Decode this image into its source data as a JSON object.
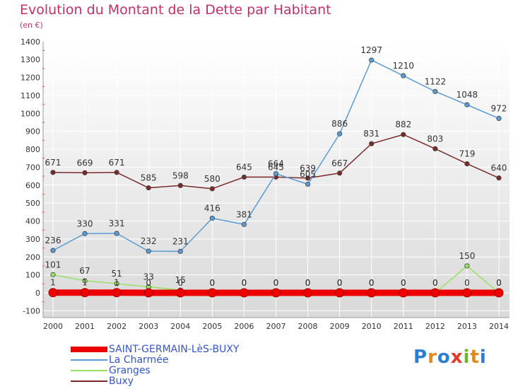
{
  "title": "Evolution du Montant de la Dette par Habitant",
  "subtitle": "(en €)",
  "logo_text": "Proxiti",
  "chart_data": {
    "type": "line",
    "x": [
      "2000",
      "2001",
      "2002",
      "2003",
      "2004",
      "2005",
      "2006",
      "2007",
      "2008",
      "2009",
      "2010",
      "2011",
      "2012",
      "2013",
      "2014"
    ],
    "ylim": [
      -100,
      1400
    ],
    "yticks": [
      -100,
      0,
      100,
      200,
      300,
      400,
      500,
      600,
      700,
      800,
      900,
      1000,
      1100,
      1200,
      1300,
      1400
    ],
    "grid": true,
    "legend_position": "bottom-left",
    "series": [
      {
        "name": "SAINT-GERMAIN-LèS-BUXY",
        "color": "#ee0000",
        "values": [
          1,
          1,
          1,
          0,
          0,
          0,
          0,
          0,
          0,
          0,
          0,
          0,
          0,
          0,
          0
        ],
        "labels": [
          "1",
          "1",
          "1",
          "0",
          "0",
          "0",
          "0",
          "0",
          "0",
          "0",
          "0",
          "0",
          "0",
          "0",
          "0"
        ]
      },
      {
        "name": "La Charmée",
        "color": "#5a9bd5",
        "values": [
          236,
          330,
          331,
          232,
          231,
          416,
          381,
          664,
          605,
          886,
          1297,
          1210,
          1122,
          1048,
          972
        ],
        "labels": [
          "236",
          "330",
          "331",
          "232",
          "231",
          "416",
          "381",
          "664",
          "605",
          "886",
          "1297",
          "1210",
          "1122",
          "1048",
          "972"
        ]
      },
      {
        "name": "Granges",
        "color": "#99e066",
        "values": [
          101,
          67,
          51,
          33,
          15,
          0,
          0,
          0,
          0,
          0,
          0,
          0,
          0,
          150,
          0
        ],
        "labels": [
          "101",
          "67",
          "51",
          "33",
          "15",
          "0",
          "0",
          "0",
          "0",
          "0",
          "0",
          "0",
          "0",
          "150",
          "0"
        ]
      },
      {
        "name": "Buxy",
        "color": "#7a2a2a",
        "values": [
          671,
          669,
          671,
          585,
          598,
          580,
          645,
          645,
          639,
          667,
          831,
          882,
          803,
          719,
          640
        ],
        "labels": [
          "671",
          "669",
          "671",
          "585",
          "598",
          "580",
          "645",
          "645",
          "639",
          "667",
          "831",
          "882",
          "803",
          "719",
          "640"
        ]
      }
    ]
  }
}
